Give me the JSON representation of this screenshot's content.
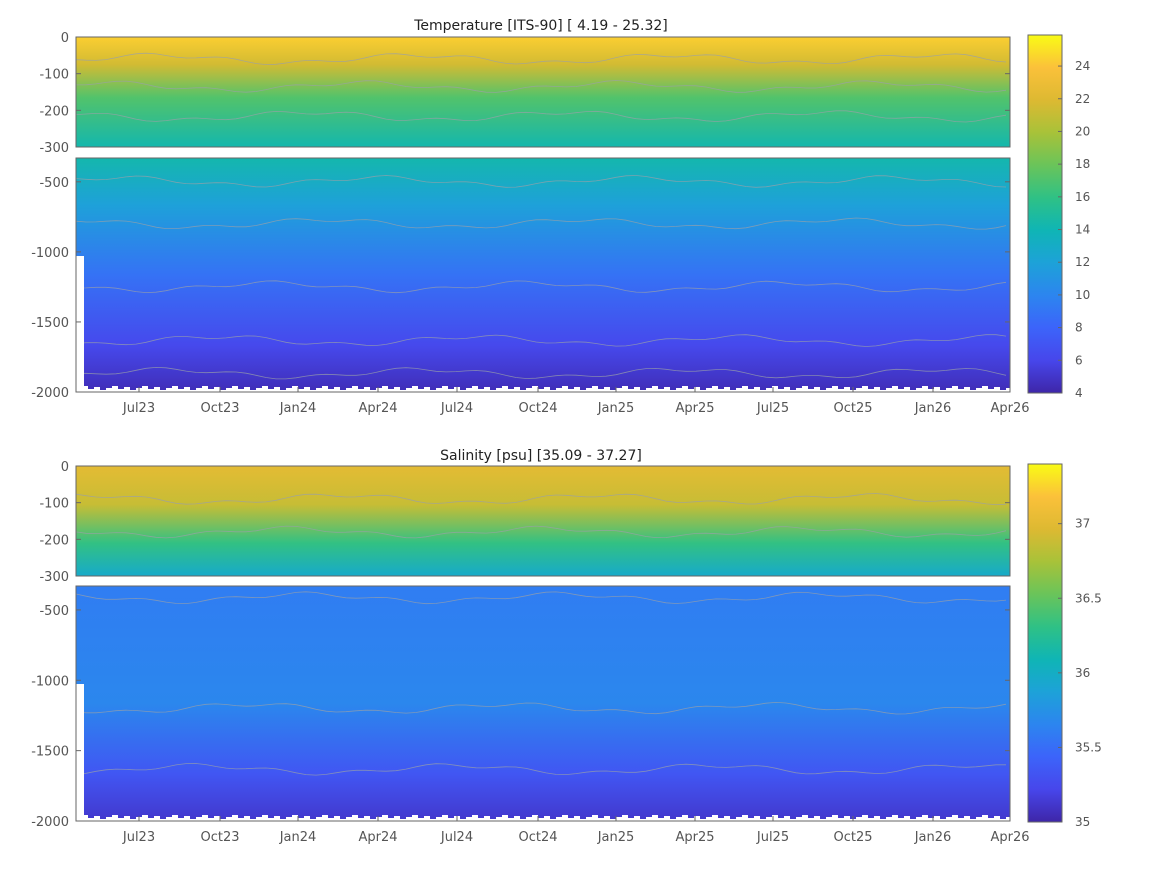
{
  "chart_data": [
    {
      "type": "heatmap",
      "title": "Temperature [ITS-90]   [ 4.19 - 25.32]",
      "xlabel": "",
      "ylabel": "",
      "x_tick_labels": [
        "Jul23",
        "Oct23",
        "Jan24",
        "Apr24",
        "Jul24",
        "Oct24",
        "Jan25",
        "Apr25",
        "Jul25",
        "Oct25",
        "Jan26",
        "Apr26"
      ],
      "upper_panel": {
        "ylim": [
          -300,
          0
        ],
        "y_ticks": [
          0,
          -100,
          -200,
          -300
        ]
      },
      "lower_panel": {
        "ylim": [
          -2000,
          -330
        ],
        "y_ticks": [
          -500,
          -1000,
          -1500,
          -2000
        ]
      },
      "colorbar": {
        "range": [
          4,
          25.9
        ],
        "ticks": [
          24,
          22,
          20,
          18,
          16,
          14,
          12,
          10,
          8,
          6,
          4
        ]
      },
      "grid": false
    },
    {
      "type": "heatmap",
      "title": "Salinity [psu]   [35.09 - 37.27]",
      "xlabel": "",
      "ylabel": "",
      "x_tick_labels": [
        "Jul23",
        "Oct23",
        "Jan24",
        "Apr24",
        "Jul24",
        "Oct24",
        "Jan25",
        "Apr25",
        "Jul25",
        "Oct25",
        "Jan26",
        "Apr26"
      ],
      "upper_panel": {
        "ylim": [
          -300,
          0
        ],
        "y_ticks": [
          0,
          -100,
          -200,
          -300
        ]
      },
      "lower_panel": {
        "ylim": [
          -2000,
          -330
        ],
        "y_ticks": [
          -500,
          -1000,
          -1500,
          -2000
        ]
      },
      "colorbar": {
        "range": [
          35,
          37.4
        ],
        "ticks": [
          37,
          36.5,
          36,
          35.5,
          35
        ]
      },
      "grid": false
    }
  ],
  "colors": {
    "parula": [
      "#3e26a8",
      "#4746eb",
      "#3c64fa",
      "#2c85ef",
      "#1da2d8",
      "#0fb5b5",
      "#2fc185",
      "#6ac45a",
      "#a8c239",
      "#ddb932",
      "#fbc13a",
      "#f9fb15"
    ],
    "frame": "#666666",
    "tick_text": "#555555",
    "title_text": "#222222",
    "contour": "#9aa0a8"
  }
}
